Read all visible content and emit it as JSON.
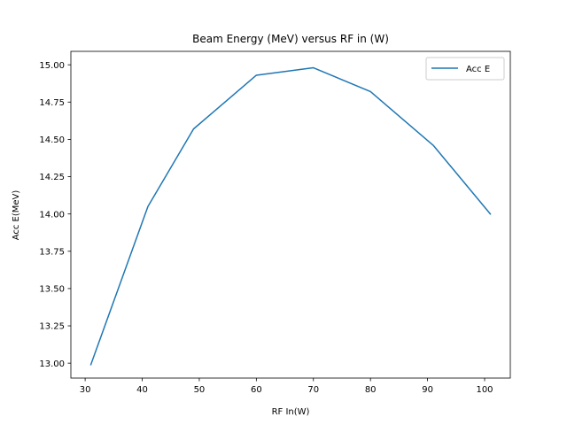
{
  "chart_data": {
    "type": "line",
    "title": "Beam Energy (MeV) versus RF in (W)",
    "xlabel": "RF In(W)",
    "ylabel": "Acc E(MeV)",
    "xlim": [
      27.5,
      104.5
    ],
    "ylim": [
      12.9,
      15.09
    ],
    "xticks": [
      30,
      40,
      50,
      60,
      70,
      80,
      90,
      100
    ],
    "yticks": [
      13.0,
      13.25,
      13.5,
      13.75,
      14.0,
      14.25,
      14.5,
      14.75,
      15.0
    ],
    "ytick_labels": [
      "13.00",
      "13.25",
      "13.50",
      "13.75",
      "14.00",
      "14.25",
      "14.50",
      "14.75",
      "15.00"
    ],
    "grid": false,
    "legend": {
      "position": "upper right"
    },
    "series": [
      {
        "name": "Acc E",
        "color": "#1f77b4",
        "x": [
          31,
          41,
          49,
          60,
          70,
          80,
          91,
          101
        ],
        "y": [
          12.99,
          14.05,
          14.57,
          14.93,
          14.98,
          14.82,
          14.46,
          14.0
        ]
      }
    ]
  }
}
